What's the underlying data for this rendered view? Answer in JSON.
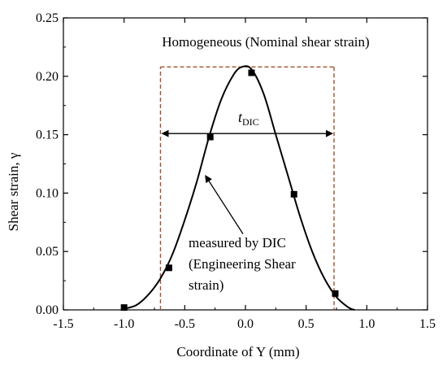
{
  "chart_data": {
    "type": "line",
    "xlabel": "Coordinate of Y (mm)",
    "ylabel": "Shear strain, γ",
    "xlim": [
      -1.5,
      1.5
    ],
    "ylim": [
      0,
      0.25
    ],
    "xticks": [
      "-1.5",
      "-1.0",
      "-0.5",
      "0.0",
      "0.5",
      "1.0",
      "1.5"
    ],
    "yticks": [
      "0.00",
      "0.05",
      "0.10",
      "0.15",
      "0.20",
      "0.25"
    ],
    "grid": false,
    "series": [
      {
        "name": "measured by DIC (Engineering Shear strain)",
        "marker": "square",
        "color": "#000000",
        "points": [
          {
            "x": -1.0,
            "y": 0.002
          },
          {
            "x": -0.63,
            "y": 0.036
          },
          {
            "x": -0.29,
            "y": 0.148
          },
          {
            "x": 0.05,
            "y": 0.203
          },
          {
            "x": 0.4,
            "y": 0.099
          },
          {
            "x": 0.74,
            "y": 0.014
          }
        ],
        "curve": [
          {
            "x": -1.0,
            "y": 0.001
          },
          {
            "x": -0.9,
            "y": 0.004
          },
          {
            "x": -0.8,
            "y": 0.013
          },
          {
            "x": -0.7,
            "y": 0.027
          },
          {
            "x": -0.6,
            "y": 0.048
          },
          {
            "x": -0.5,
            "y": 0.077
          },
          {
            "x": -0.4,
            "y": 0.11
          },
          {
            "x": -0.3,
            "y": 0.148
          },
          {
            "x": -0.2,
            "y": 0.18
          },
          {
            "x": -0.1,
            "y": 0.201
          },
          {
            "x": -0.03,
            "y": 0.208
          },
          {
            "x": 0.05,
            "y": 0.206
          },
          {
            "x": 0.15,
            "y": 0.185
          },
          {
            "x": 0.25,
            "y": 0.15
          },
          {
            "x": 0.35,
            "y": 0.115
          },
          {
            "x": 0.45,
            "y": 0.08
          },
          {
            "x": 0.55,
            "y": 0.05
          },
          {
            "x": 0.65,
            "y": 0.027
          },
          {
            "x": 0.75,
            "y": 0.011
          },
          {
            "x": 0.85,
            "y": 0.002
          },
          {
            "x": 0.9,
            "y": 0.0
          }
        ]
      },
      {
        "name": "Homogeneous (Nominal shear strain)",
        "style": "dashed",
        "color": "#a0522d",
        "x": [
          -0.7,
          0.73
        ],
        "y": 0.208
      }
    ],
    "annotations": {
      "homogeneous_label": "Homogeneous (Nominal shear strain)",
      "tdic_main": "t",
      "tdic_sub": "DIC",
      "measured_line1": "measured by DIC",
      "measured_line2": "(Engineering Shear",
      "measured_line3": "strain)",
      "tdic_arrow": {
        "x1": -0.7,
        "x2": 0.73,
        "y": 0.151
      },
      "pointer_arrow": {
        "from": {
          "x": -0.02,
          "y": 0.065
        },
        "to": {
          "x": -0.33,
          "y": 0.115
        }
      }
    }
  }
}
